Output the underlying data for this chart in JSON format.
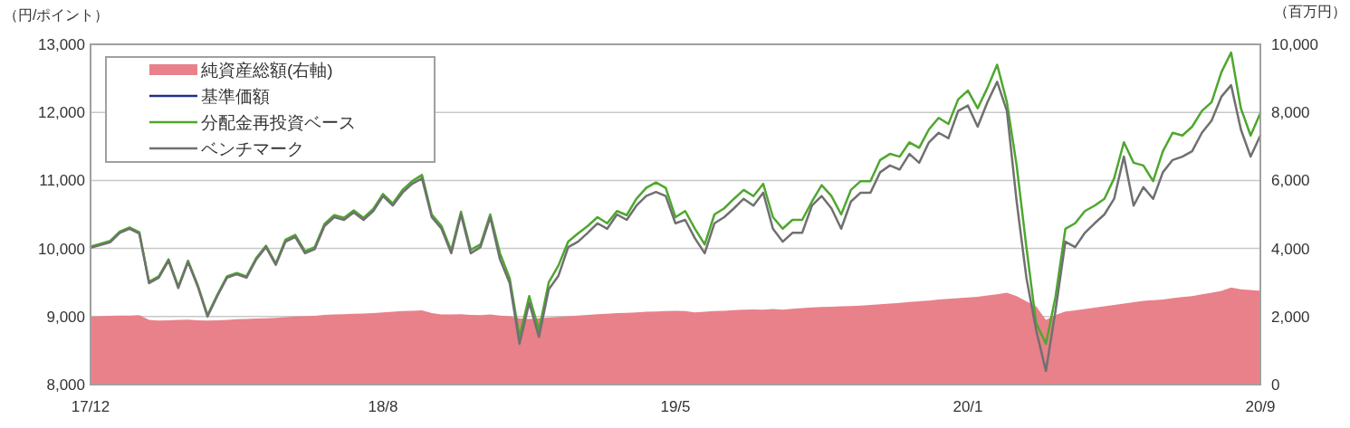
{
  "chart_data": {
    "type": "line",
    "ylabel": "（円/ポイント）",
    "y2label": "（百万円）",
    "legend": "top left",
    "grid": "y",
    "categories": [
      "17/12",
      null,
      null,
      null,
      null,
      null,
      null,
      null,
      null,
      null,
      null,
      null,
      null,
      null,
      null,
      null,
      null,
      null,
      null,
      null,
      null,
      null,
      null,
      null,
      null,
      null,
      null,
      null,
      null,
      null,
      "18/8",
      null,
      null,
      null,
      null,
      null,
      null,
      null,
      null,
      null,
      null,
      null,
      null,
      null,
      null,
      null,
      null,
      null,
      null,
      null,
      null,
      null,
      null,
      null,
      null,
      null,
      null,
      null,
      null,
      null,
      "19/5",
      null,
      null,
      null,
      null,
      null,
      null,
      null,
      null,
      null,
      null,
      null,
      null,
      null,
      null,
      null,
      null,
      null,
      null,
      null,
      null,
      null,
      null,
      null,
      null,
      null,
      null,
      null,
      null,
      null,
      "20/1",
      null,
      null,
      null,
      null,
      null,
      null,
      null,
      null,
      null,
      null,
      null,
      null,
      null,
      null,
      null,
      null,
      null,
      null,
      null,
      null,
      null,
      null,
      null,
      null,
      null,
      null,
      null,
      null,
      null,
      "20/9"
    ],
    "ylim": [
      8000,
      13000
    ],
    "yticks": [
      {
        "value": 8000,
        "label": "8,000"
      },
      {
        "value": 9000,
        "label": "9,000"
      },
      {
        "value": 10000,
        "label": "10,000"
      },
      {
        "value": 11000,
        "label": "11,000"
      },
      {
        "value": 12000,
        "label": "12,000"
      },
      {
        "value": 13000,
        "label": "13,000"
      }
    ],
    "y2lim": [
      0,
      10000
    ],
    "y2ticks": [
      0,
      {
        "value": 2000,
        "label": "2,000"
      },
      {
        "value": 4000,
        "label": "4,000"
      },
      {
        "value": 6000,
        "label": "6,000"
      },
      {
        "value": 8000,
        "label": "8,000"
      },
      {
        "value": 10000,
        "label": "10,000"
      }
    ],
    "series": [
      {
        "name": "純資産総額(右軸)",
        "type": "area",
        "axis": "y2",
        "color": "#e9818a",
        "values": [
          2000,
          2010,
          2020,
          2030,
          2030,
          2040,
          1900,
          1880,
          1890,
          1900,
          1910,
          1890,
          1880,
          1890,
          1900,
          1920,
          1930,
          1940,
          1950,
          1960,
          1980,
          2000,
          2010,
          2020,
          2050,
          2060,
          2070,
          2080,
          2090,
          2100,
          2120,
          2140,
          2160,
          2170,
          2180,
          2100,
          2060,
          2060,
          2070,
          2050,
          2040,
          2060,
          2030,
          2010,
          1950,
          1930,
          1950,
          1970,
          1990,
          2010,
          2030,
          2050,
          2070,
          2080,
          2100,
          2110,
          2120,
          2140,
          2150,
          2160,
          2170,
          2160,
          2120,
          2140,
          2160,
          2170,
          2190,
          2200,
          2210,
          2200,
          2220,
          2200,
          2230,
          2250,
          2270,
          2280,
          2290,
          2300,
          2310,
          2320,
          2340,
          2360,
          2380,
          2400,
          2430,
          2450,
          2470,
          2500,
          2520,
          2540,
          2560,
          2580,
          2620,
          2650,
          2700,
          2600,
          2450,
          2300,
          1900,
          2050,
          2150,
          2180,
          2220,
          2260,
          2300,
          2340,
          2380,
          2420,
          2460,
          2480,
          2500,
          2540,
          2570,
          2600,
          2650,
          2700,
          2750,
          2850,
          2800,
          2780,
          2760
        ]
      },
      {
        "name": "基準価額",
        "type": "line",
        "color": "#1f2f8a",
        "values": [
          null,
          null,
          null,
          null,
          null,
          null,
          null,
          null,
          null,
          null,
          null,
          null,
          null,
          null,
          null,
          null,
          null,
          null,
          null,
          null,
          null,
          null,
          null,
          null,
          null,
          null,
          null,
          null,
          null,
          null,
          null,
          null,
          null,
          null,
          null,
          null,
          null,
          null,
          null,
          null,
          null,
          null,
          null,
          null,
          null,
          null,
          null,
          null,
          null,
          null,
          null,
          null,
          null,
          null,
          null,
          null,
          null,
          null,
          null,
          null,
          null,
          null,
          null,
          null,
          null,
          null,
          null,
          null,
          null,
          null,
          null,
          null,
          null,
          null,
          null,
          null,
          null,
          null,
          null,
          null,
          null,
          null,
          null,
          null,
          null,
          null,
          null,
          null,
          null,
          null,
          null,
          null,
          null,
          null,
          null,
          null,
          null,
          null,
          null,
          null,
          null,
          null,
          null,
          null,
          null,
          null,
          null,
          null,
          null,
          null,
          null,
          null,
          null,
          null,
          null,
          null,
          null,
          null,
          null,
          null,
          null
        ]
      },
      {
        "name": "分配金再投資ベース",
        "type": "line",
        "color": "#4ea72e",
        "values": [
          10030,
          10070,
          10110,
          10250,
          10310,
          10240,
          9510,
          9590,
          9840,
          9440,
          9820,
          9460,
          9020,
          9320,
          9590,
          9640,
          9590,
          9860,
          10040,
          9780,
          10130,
          10200,
          9960,
          10020,
          10360,
          10490,
          10450,
          10560,
          10450,
          10580,
          10800,
          10660,
          10860,
          10990,
          11080,
          10500,
          10330,
          9970,
          10540,
          9980,
          10060,
          10500,
          9930,
          9560,
          8700,
          9300,
          8800,
          9500,
          9750,
          10100,
          10220,
          10330,
          10460,
          10370,
          10550,
          10490,
          10730,
          10890,
          10970,
          10890,
          10460,
          10550,
          10290,
          10060,
          10500,
          10590,
          10730,
          10860,
          10770,
          10950,
          10460,
          10290,
          10420,
          10420,
          10690,
          10930,
          10770,
          10500,
          10860,
          10990,
          10990,
          11300,
          11390,
          11350,
          11560,
          11480,
          11750,
          11920,
          11830,
          12190,
          12320,
          12060,
          12360,
          12700,
          12150,
          11220,
          10020,
          8900,
          8600,
          9300,
          10290,
          10370,
          10550,
          10630,
          10730,
          11030,
          11560,
          11260,
          11220,
          10990,
          11430,
          11700,
          11660,
          11790,
          12020,
          12150,
          12590,
          12880,
          12060,
          11660,
          11990
        ]
      },
      {
        "name": "ベンチマーク",
        "type": "line",
        "color": "#707070",
        "values": [
          10010,
          10050,
          10090,
          10230,
          10290,
          10220,
          9490,
          9570,
          9820,
          9420,
          9800,
          9440,
          9000,
          9300,
          9570,
          9620,
          9570,
          9840,
          10020,
          9760,
          10100,
          10170,
          9930,
          9990,
          10330,
          10460,
          10420,
          10530,
          10420,
          10550,
          10770,
          10630,
          10820,
          10950,
          11030,
          10460,
          10290,
          9930,
          10500,
          9930,
          10020,
          10460,
          9840,
          9490,
          8600,
          9200,
          8700,
          9400,
          9600,
          10020,
          10100,
          10230,
          10370,
          10290,
          10500,
          10420,
          10630,
          10770,
          10830,
          10770,
          10370,
          10420,
          10150,
          9930,
          10370,
          10460,
          10590,
          10730,
          10630,
          10820,
          10290,
          10100,
          10230,
          10230,
          10630,
          10770,
          10590,
          10290,
          10690,
          10820,
          10820,
          11120,
          11220,
          11160,
          11390,
          11260,
          11560,
          11700,
          11620,
          12020,
          12100,
          11790,
          12150,
          12450,
          12020,
          10690,
          9570,
          8800,
          8200,
          9100,
          10100,
          10020,
          10230,
          10370,
          10500,
          10730,
          11350,
          10630,
          10900,
          10730,
          11120,
          11300,
          11350,
          11430,
          11700,
          11880,
          12230,
          12400,
          11750,
          11350,
          11660
        ]
      }
    ]
  }
}
